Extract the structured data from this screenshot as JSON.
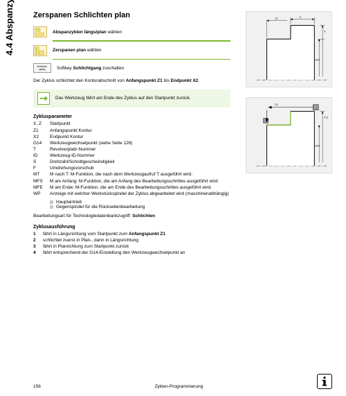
{
  "sidebar": "4.4 Abspanzyklen",
  "title": "Zerspanen Schlichten plan",
  "steps": [
    {
      "pre": "Abspanzyklen längs/plan",
      "post": " wählen"
    },
    {
      "pre": "Zerspanen plan",
      "post": " wählen"
    },
    {
      "soft": "Schlicht-gang",
      "pre": "Softkey ",
      "bold": "Schlichtgang",
      "post": " zuschalten"
    }
  ],
  "desc_pre": "Der Zyklus schlichtet den Konturabschnitt von ",
  "desc_b1": "Anfangspunkt Z1",
  "desc_mid": " bis ",
  "desc_b2": "Endpunkt X2",
  "desc_post": ".",
  "note": "Das Werkzeug fährt am Ende des Zyklus auf den Startpunkt zurück.",
  "params_head": "Zyklusparameter",
  "params": [
    {
      "k": "X, Z",
      "v": "Startpunkt"
    },
    {
      "k": "Z1",
      "v": "Anfangspunkt Kontur"
    },
    {
      "k": "X2",
      "v": "Endpunkt Kontur"
    },
    {
      "k": "G14",
      "v": "Werkzeugwechselpunkt (siehe Seite 126)"
    },
    {
      "k": "T",
      "v": "Revolverplatz-Nummer"
    },
    {
      "k": "ID",
      "v": "Werkzeug-ID-Nummer"
    },
    {
      "k": "S",
      "v": "Drehzahl/Schnittgeschwindigkeit"
    },
    {
      "k": "F",
      "v": "Umdrehungsvorschub"
    },
    {
      "k": "MT",
      "v": "M nach T: M-Funktion, die nach dem Werkzeugaufruf T ausgeführt wird."
    },
    {
      "k": "MFS",
      "v": "M am Anfang: M-Funktion, die am Anfang des Bearbeitungsschrittes ausgeführt wird."
    },
    {
      "k": "MFE",
      "v": "M am Ende: M-Funktion, die am Ende des Bearbeitungsschrittes ausgeführt wird."
    },
    {
      "k": "WP",
      "v": "Anzeige mit welcher Werkstückspindel der Zyklus abgearbeitet wird (maschinenabhängig)"
    }
  ],
  "wp_opts": [
    "Hauptantrieb",
    "Gegenspindel für die Rückseitenbearbeitung"
  ],
  "tech_pre": "Bearbeitungsart für Technologiedatenbankzugriff: ",
  "tech_b": "Schlichten",
  "exec_head": "Zyklusausführung",
  "exec": [
    {
      "n": "1",
      "pre": "fährt in Längsrichtung vom Startpunkt zum ",
      "b": "Anfangspunkt Z1"
    },
    {
      "n": "2",
      "pre": "schlichtet zuerst in Plan-, dann in Längsrichtung"
    },
    {
      "n": "3",
      "pre": "fährt in Planrichtung zum Startpunkt zurück"
    },
    {
      "n": "4",
      "pre": "fährt entsprechend der G14-Einstellung den Werkzeugwechselpunkt an"
    }
  ],
  "page_num": "156",
  "footer_right": "Zyklen-Programmierung",
  "fig": {
    "bg": "#f1f1f1",
    "stroke": "#000000",
    "dim_stroke": "#000000",
    "green": "#79b829"
  }
}
